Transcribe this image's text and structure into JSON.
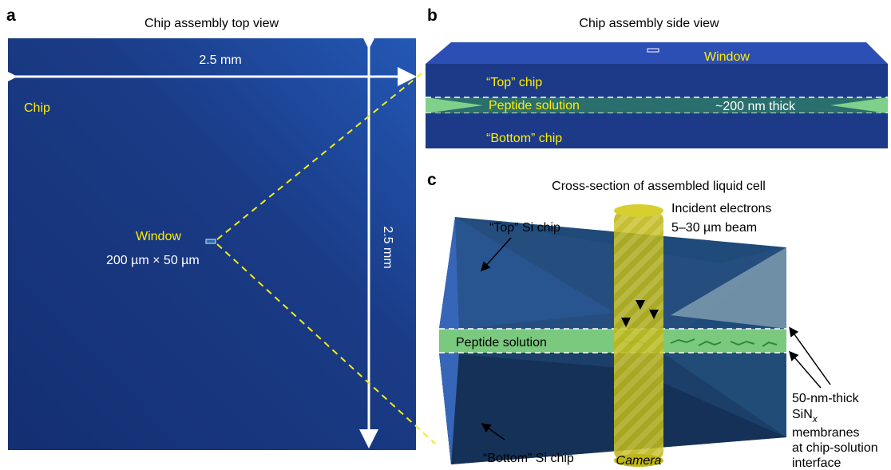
{
  "panel_a": {
    "letter": "a",
    "title": "Chip assembly top view",
    "width_label": "2.5 mm",
    "height_label": "2.5 mm",
    "chip_label": "Chip",
    "window_label": "Window",
    "window_size": "200 µm × 50 µm"
  },
  "panel_b": {
    "letter": "b",
    "title": "Chip assembly side view",
    "window_label": "Window",
    "top_chip": "“Top” chip",
    "solution": "Peptide solution",
    "thickness": "~200 nm thick",
    "bottom_chip": "“Bottom” chip"
  },
  "panel_c": {
    "letter": "c",
    "title": "Cross-section of assembled liquid cell",
    "top_chip": "“Top” Si chip",
    "bottom_chip": "“Bottom” Si chip",
    "solution": "Peptide solution",
    "electrons_line1": "Incident electrons",
    "electrons_line2": "5–30 µm beam",
    "camera": "Camera",
    "membrane_line1": "50-nm-thick",
    "membrane_sin": "SiN",
    "membrane_sub": "x",
    "membrane_line3": "membranes",
    "membrane_line4": "at chip-solution",
    "membrane_line5": "interface"
  },
  "colors": {
    "chip_blue": "#1d3f8e",
    "solution_green": "#6fd07a",
    "label_yellow": "#ffee00",
    "camera_yellow": "#c9c21c"
  }
}
